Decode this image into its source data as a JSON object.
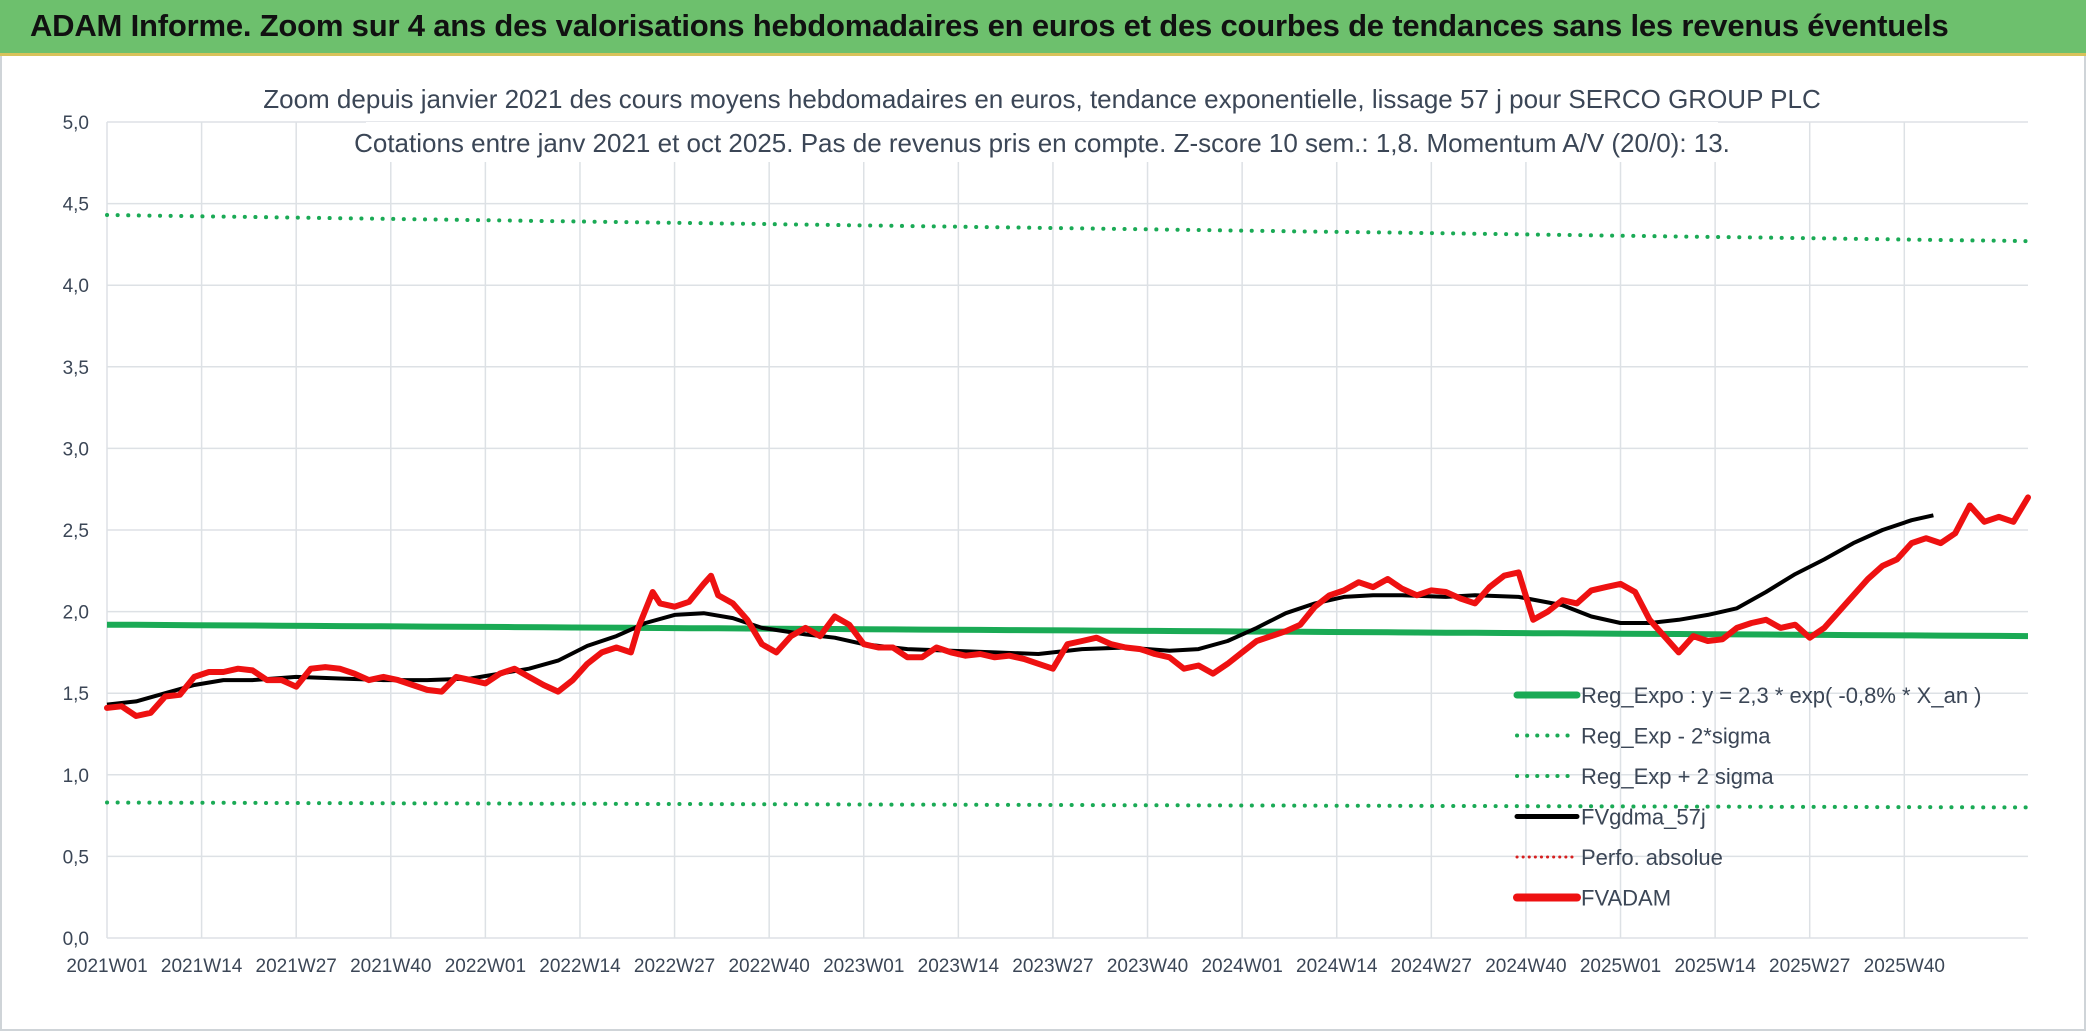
{
  "banner": {
    "title": "ADAM Informe. Zoom sur 4 ans des valorisations hebdomadaires en euros et des courbes de tendances sans les revenus éventuels"
  },
  "colors": {
    "banner_bg": "#6dc06d",
    "regression": "#1aaa55",
    "price": "#ee1111",
    "moving_average": "#000000",
    "perf": "#d62020"
  },
  "chart_data": {
    "type": "line",
    "title": "Zoom depuis janvier 2021 des cours moyens hebdomadaires en euros, tendance exponentielle, lissage 57 j pour SERCO GROUP PLC",
    "subtitle": "Cotations entre janv 2021 et oct 2025. Pas de revenus pris en compte. Z-score 10 sem.: 1,8. Momentum A/V (20/0): 13.",
    "xlabel": "",
    "ylabel": "",
    "ylim": [
      0,
      5
    ],
    "yticks": [
      "0,0",
      "0,5",
      "1,0",
      "1,5",
      "2,0",
      "2,5",
      "3,0",
      "3,5",
      "4,0",
      "4,5",
      "5,0"
    ],
    "xticks": [
      "2021W01",
      "2021W14",
      "2021W27",
      "2021W40",
      "2022W01",
      "2022W14",
      "2022W27",
      "2022W40",
      "2023W01",
      "2023W14",
      "2023W27",
      "2023W40",
      "2024W01",
      "2024W14",
      "2024W27",
      "2024W40",
      "2025W01",
      "2025W14",
      "2025W27",
      "2025W40"
    ],
    "grid": true,
    "legend_position": "bottom-right",
    "series": [
      {
        "name": "Reg_Expo : y = 2,3 * exp( -0,8% *  X_an )",
        "style": "solid",
        "start": 1.92,
        "end": 1.85
      },
      {
        "name": "Reg_Exp - 2*sigma",
        "style": "dotted",
        "start": 0.83,
        "end": 0.8
      },
      {
        "name": "Reg_Exp + 2 sigma",
        "style": "dotted",
        "start": 4.43,
        "end": 4.27
      },
      {
        "name": "FVgdma_57j",
        "style": "solid",
        "points": [
          [
            0,
            1.43
          ],
          [
            4,
            1.45
          ],
          [
            8,
            1.5
          ],
          [
            12,
            1.55
          ],
          [
            16,
            1.58
          ],
          [
            20,
            1.58
          ],
          [
            26,
            1.6
          ],
          [
            32,
            1.59
          ],
          [
            38,
            1.58
          ],
          [
            44,
            1.58
          ],
          [
            50,
            1.59
          ],
          [
            54,
            1.62
          ],
          [
            58,
            1.65
          ],
          [
            62,
            1.7
          ],
          [
            66,
            1.79
          ],
          [
            70,
            1.85
          ],
          [
            74,
            1.93
          ],
          [
            78,
            1.98
          ],
          [
            82,
            1.99
          ],
          [
            86,
            1.96
          ],
          [
            90,
            1.9
          ],
          [
            96,
            1.86
          ],
          [
            100,
            1.84
          ],
          [
            104,
            1.8
          ],
          [
            110,
            1.77
          ],
          [
            116,
            1.76
          ],
          [
            122,
            1.75
          ],
          [
            128,
            1.74
          ],
          [
            134,
            1.77
          ],
          [
            140,
            1.78
          ],
          [
            146,
            1.76
          ],
          [
            150,
            1.77
          ],
          [
            154,
            1.82
          ],
          [
            158,
            1.9
          ],
          [
            162,
            1.99
          ],
          [
            166,
            2.05
          ],
          [
            170,
            2.09
          ],
          [
            174,
            2.1
          ],
          [
            178,
            2.1
          ],
          [
            184,
            2.09
          ],
          [
            188,
            2.1
          ],
          [
            194,
            2.09
          ],
          [
            200,
            2.04
          ],
          [
            204,
            1.97
          ],
          [
            208,
            1.93
          ],
          [
            212,
            1.93
          ],
          [
            216,
            1.95
          ],
          [
            220,
            1.98
          ],
          [
            224,
            2.02
          ],
          [
            228,
            2.12
          ],
          [
            232,
            2.23
          ],
          [
            236,
            2.32
          ],
          [
            240,
            2.42
          ],
          [
            244,
            2.5
          ],
          [
            248,
            2.56
          ],
          [
            251,
            2.59
          ]
        ]
      },
      {
        "name": "Perfo. absolue",
        "style": "dotted"
      },
      {
        "name": "FVADAM",
        "style": "solid",
        "points": [
          [
            0,
            1.41
          ],
          [
            2,
            1.42
          ],
          [
            4,
            1.36
          ],
          [
            6,
            1.38
          ],
          [
            8,
            1.48
          ],
          [
            10,
            1.49
          ],
          [
            12,
            1.6
          ],
          [
            14,
            1.63
          ],
          [
            16,
            1.63
          ],
          [
            18,
            1.65
          ],
          [
            20,
            1.64
          ],
          [
            22,
            1.58
          ],
          [
            24,
            1.58
          ],
          [
            26,
            1.54
          ],
          [
            28,
            1.65
          ],
          [
            30,
            1.66
          ],
          [
            32,
            1.65
          ],
          [
            34,
            1.62
          ],
          [
            36,
            1.58
          ],
          [
            38,
            1.6
          ],
          [
            40,
            1.58
          ],
          [
            42,
            1.55
          ],
          [
            44,
            1.52
          ],
          [
            46,
            1.51
          ],
          [
            48,
            1.6
          ],
          [
            50,
            1.58
          ],
          [
            52,
            1.56
          ],
          [
            54,
            1.62
          ],
          [
            56,
            1.65
          ],
          [
            58,
            1.6
          ],
          [
            60,
            1.55
          ],
          [
            62,
            1.51
          ],
          [
            64,
            1.58
          ],
          [
            66,
            1.68
          ],
          [
            68,
            1.75
          ],
          [
            70,
            1.78
          ],
          [
            72,
            1.75
          ],
          [
            73,
            1.9
          ],
          [
            75,
            2.12
          ],
          [
            76,
            2.05
          ],
          [
            78,
            2.03
          ],
          [
            80,
            2.06
          ],
          [
            82,
            2.17
          ],
          [
            83,
            2.22
          ],
          [
            84,
            2.1
          ],
          [
            86,
            2.05
          ],
          [
            88,
            1.95
          ],
          [
            90,
            1.8
          ],
          [
            92,
            1.75
          ],
          [
            94,
            1.85
          ],
          [
            96,
            1.9
          ],
          [
            98,
            1.85
          ],
          [
            100,
            1.97
          ],
          [
            102,
            1.92
          ],
          [
            104,
            1.8
          ],
          [
            106,
            1.78
          ],
          [
            108,
            1.78
          ],
          [
            110,
            1.72
          ],
          [
            112,
            1.72
          ],
          [
            114,
            1.78
          ],
          [
            116,
            1.75
          ],
          [
            118,
            1.73
          ],
          [
            120,
            1.74
          ],
          [
            122,
            1.72
          ],
          [
            124,
            1.73
          ],
          [
            126,
            1.71
          ],
          [
            128,
            1.68
          ],
          [
            130,
            1.65
          ],
          [
            132,
            1.8
          ],
          [
            134,
            1.82
          ],
          [
            136,
            1.84
          ],
          [
            138,
            1.8
          ],
          [
            140,
            1.78
          ],
          [
            142,
            1.77
          ],
          [
            144,
            1.74
          ],
          [
            146,
            1.72
          ],
          [
            148,
            1.65
          ],
          [
            150,
            1.67
          ],
          [
            152,
            1.62
          ],
          [
            154,
            1.68
          ],
          [
            156,
            1.75
          ],
          [
            158,
            1.82
          ],
          [
            160,
            1.85
          ],
          [
            162,
            1.88
          ],
          [
            164,
            1.92
          ],
          [
            166,
            2.03
          ],
          [
            168,
            2.1
          ],
          [
            170,
            2.13
          ],
          [
            172,
            2.18
          ],
          [
            174,
            2.15
          ],
          [
            176,
            2.2
          ],
          [
            178,
            2.14
          ],
          [
            180,
            2.1
          ],
          [
            182,
            2.13
          ],
          [
            184,
            2.12
          ],
          [
            186,
            2.08
          ],
          [
            188,
            2.05
          ],
          [
            190,
            2.15
          ],
          [
            192,
            2.22
          ],
          [
            194,
            2.24
          ],
          [
            196,
            1.95
          ],
          [
            198,
            2.0
          ],
          [
            200,
            2.07
          ],
          [
            202,
            2.05
          ],
          [
            204,
            2.13
          ],
          [
            206,
            2.15
          ],
          [
            208,
            2.17
          ],
          [
            210,
            2.12
          ],
          [
            212,
            1.95
          ],
          [
            214,
            1.85
          ],
          [
            216,
            1.75
          ],
          [
            218,
            1.85
          ],
          [
            220,
            1.82
          ],
          [
            222,
            1.83
          ],
          [
            224,
            1.9
          ],
          [
            226,
            1.93
          ],
          [
            228,
            1.95
          ],
          [
            230,
            1.9
          ],
          [
            232,
            1.92
          ],
          [
            234,
            1.84
          ],
          [
            236,
            1.9
          ],
          [
            238,
            2.0
          ],
          [
            240,
            2.1
          ],
          [
            242,
            2.2
          ],
          [
            244,
            2.28
          ],
          [
            246,
            2.32
          ],
          [
            248,
            2.42
          ],
          [
            250,
            2.45
          ],
          [
            252,
            2.42
          ],
          [
            254,
            2.48
          ],
          [
            256,
            2.65
          ],
          [
            258,
            2.55
          ],
          [
            260,
            2.58
          ],
          [
            262,
            2.55
          ],
          [
            264,
            2.7
          ]
        ]
      }
    ]
  }
}
